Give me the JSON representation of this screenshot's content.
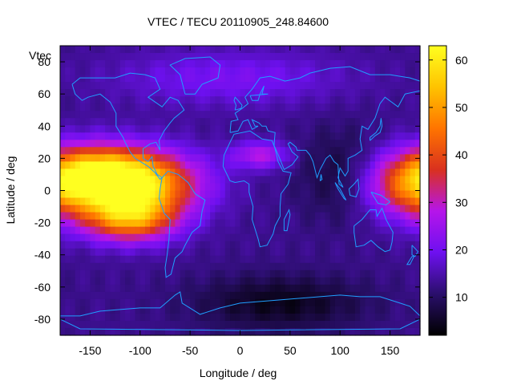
{
  "chart_data": {
    "type": "heatmap",
    "title": "VTEC / TECU 20110905_248.84600",
    "xlabel": "Longitude / deg",
    "ylabel": "Latitude / deg",
    "key_label": "Vtec",
    "xlim": [
      -180,
      180
    ],
    "ylim": [
      -90,
      90
    ],
    "xticks": [
      -150,
      -100,
      -50,
      0,
      50,
      100,
      150
    ],
    "yticks": [
      -80,
      -60,
      -40,
      -20,
      0,
      20,
      40,
      60,
      80
    ],
    "colorbar": {
      "min": 2,
      "max": 63,
      "ticks": [
        10,
        20,
        30,
        40,
        50,
        60
      ]
    },
    "colormap_stops": [
      "#000000",
      "#2a0f6b",
      "#6e10f0",
      "#b515ea",
      "#d9311f",
      "#ff7400",
      "#ffc300",
      "#ffff20"
    ],
    "map_line_color": "#1f9fff",
    "grid": false,
    "tec_field": {
      "background": 13,
      "features": [
        {
          "lon": -110,
          "lat": 4,
          "slon": 45,
          "slat": 14,
          "amp": 48
        },
        {
          "lon": -110,
          "lat": -18,
          "slon": 32,
          "slat": 10,
          "amp": 30
        },
        {
          "lon": -150,
          "lat": 12,
          "slon": 40,
          "slat": 12,
          "amp": 22
        },
        {
          "lon": 172,
          "lat": 2,
          "slon": 32,
          "slat": 14,
          "amp": 22
        },
        {
          "lon": 20,
          "lat": 22,
          "slon": 20,
          "slat": 6,
          "amp": 15
        },
        {
          "lon": -10,
          "lat": 70,
          "slon": 80,
          "slat": 12,
          "amp": 8
        },
        {
          "lon": 40,
          "lat": -70,
          "slon": 60,
          "slat": 12,
          "amp": -9
        },
        {
          "lon": 100,
          "lat": 10,
          "slon": 30,
          "slat": 20,
          "amp": -6
        }
      ]
    }
  }
}
